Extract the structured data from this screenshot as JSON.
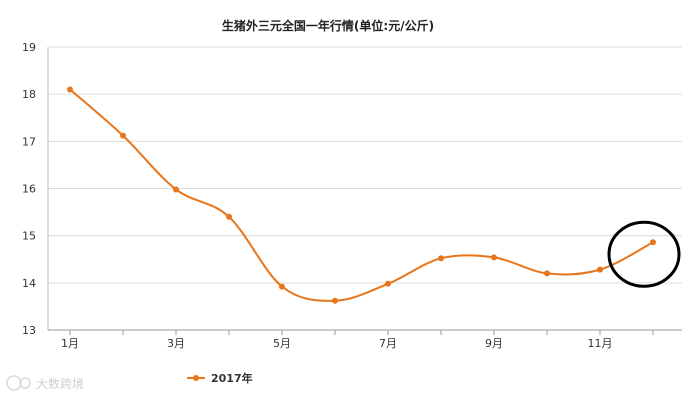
{
  "chart_data": {
    "type": "line",
    "title": "生猪外三元全国一年行情(单位:元/公斤)",
    "xlabel": "",
    "ylabel": "",
    "ylim": [
      13,
      19
    ],
    "yticks": [
      "13",
      "14",
      "15",
      "16",
      "17",
      "18",
      "19"
    ],
    "categories": [
      "1月",
      "2月",
      "3月",
      "4月",
      "5月",
      "6月",
      "7月",
      "8月",
      "9月",
      "10月",
      "11月",
      "12月"
    ],
    "xtick_labels": [
      "1月",
      "",
      "3月",
      "",
      "5月",
      "",
      "7月",
      "",
      "9月",
      "",
      "11月",
      ""
    ],
    "series": [
      {
        "name": "2017年",
        "color": "#e8751a",
        "values": [
          18.1,
          17.12,
          15.98,
          15.4,
          13.92,
          13.62,
          13.98,
          14.52,
          14.54,
          14.2,
          14.28,
          14.86
        ]
      }
    ],
    "grid": true,
    "legend": "bottom-left",
    "annotation": {
      "type": "circle",
      "target_index": 11,
      "color": "#000000"
    }
  },
  "watermark": "大数跨境"
}
